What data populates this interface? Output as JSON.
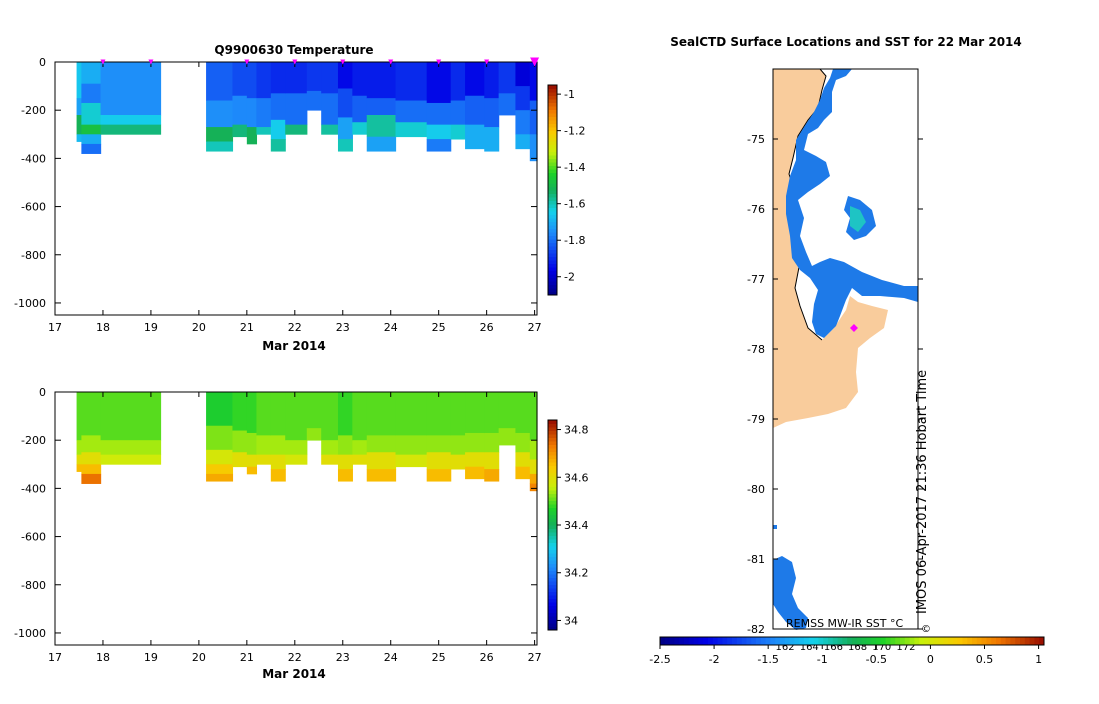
{
  "chart_data": [
    {
      "type": "heatmap",
      "title": "Q9900630  Temperature",
      "xlabel": "Mar 2014",
      "ylabel": "",
      "x_ticks": [
        "17",
        "18",
        "19",
        "20",
        "21",
        "22",
        "23",
        "24",
        "25",
        "26",
        "27"
      ],
      "y_ticks": [
        "0",
        "-200",
        "-400",
        "-600",
        "-800",
        "-1000"
      ],
      "xlim": [
        17,
        27.05
      ],
      "ylim": [
        -1050,
        0
      ],
      "profile_marker_days": [
        18,
        19,
        21,
        22,
        23,
        24,
        25,
        26,
        27
      ],
      "colorbar": {
        "ticks": [
          "-1",
          "-1.2",
          "-1.4",
          "-1.6",
          "-1.8",
          "-2"
        ],
        "range": [
          -2.1,
          -0.95
        ]
      },
      "profiles": [
        {
          "x0": 17.45,
          "x1": 17.55,
          "depth": 330,
          "layers": [
            [
              0,
              -1.66
            ],
            [
              150,
              -1.72
            ],
            [
              220,
              -1.52
            ],
            [
              300,
              -1.68
            ]
          ]
        },
        {
          "x0": 17.55,
          "x1": 17.95,
          "depth": 380,
          "layers": [
            [
              0,
              -1.7
            ],
            [
              90,
              -1.78
            ],
            [
              170,
              -1.62
            ],
            [
              260,
              -1.48
            ],
            [
              300,
              -1.7
            ],
            [
              340,
              -1.8
            ]
          ]
        },
        {
          "x0": 17.95,
          "x1": 19.2,
          "depth": 300,
          "layers": [
            [
              0,
              -1.75
            ],
            [
              220,
              -1.65
            ],
            [
              260,
              -1.55
            ]
          ]
        },
        {
          "x0": 20.15,
          "x1": 20.7,
          "depth": 370,
          "layers": [
            [
              0,
              -1.82
            ],
            [
              160,
              -1.75
            ],
            [
              270,
              -1.52
            ],
            [
              330,
              -1.6
            ]
          ]
        },
        {
          "x0": 20.7,
          "x1": 21.0,
          "depth": 310,
          "layers": [
            [
              0,
              -1.85
            ],
            [
              140,
              -1.76
            ],
            [
              260,
              -1.55
            ]
          ]
        },
        {
          "x0": 21.0,
          "x1": 21.2,
          "depth": 340,
          "layers": [
            [
              0,
              -1.85
            ],
            [
              150,
              -1.76
            ],
            [
              270,
              -1.52
            ]
          ]
        },
        {
          "x0": 21.2,
          "x1": 21.5,
          "depth": 300,
          "layers": [
            [
              0,
              -1.88
            ],
            [
              150,
              -1.78
            ],
            [
              270,
              -1.6
            ]
          ]
        },
        {
          "x0": 21.5,
          "x1": 21.8,
          "depth": 370,
          "layers": [
            [
              0,
              -1.9
            ],
            [
              130,
              -1.8
            ],
            [
              240,
              -1.65
            ],
            [
              320,
              -1.58
            ]
          ]
        },
        {
          "x0": 21.8,
          "x1": 22.25,
          "depth": 300,
          "layers": [
            [
              0,
              -1.9
            ],
            [
              130,
              -1.8
            ],
            [
              260,
              -1.55
            ]
          ]
        },
        {
          "x0": 22.25,
          "x1": 22.55,
          "depth": 200,
          "layers": [
            [
              0,
              -1.88
            ],
            [
              120,
              -1.8
            ]
          ]
        },
        {
          "x0": 22.55,
          "x1": 22.9,
          "depth": 300,
          "layers": [
            [
              0,
              -1.88
            ],
            [
              130,
              -1.8
            ],
            [
              260,
              -1.58
            ]
          ]
        },
        {
          "x0": 22.9,
          "x1": 23.2,
          "depth": 370,
          "layers": [
            [
              0,
              -1.95
            ],
            [
              110,
              -1.85
            ],
            [
              230,
              -1.72
            ],
            [
              320,
              -1.6
            ]
          ]
        },
        {
          "x0": 23.2,
          "x1": 23.5,
          "depth": 300,
          "layers": [
            [
              0,
              -1.92
            ],
            [
              140,
              -1.82
            ],
            [
              250,
              -1.62
            ]
          ]
        },
        {
          "x0": 23.5,
          "x1": 24.1,
          "depth": 370,
          "layers": [
            [
              0,
              -1.92
            ],
            [
              150,
              -1.82
            ],
            [
              220,
              -1.58
            ],
            [
              310,
              -1.72
            ]
          ]
        },
        {
          "x0": 24.1,
          "x1": 24.75,
          "depth": 310,
          "layers": [
            [
              0,
              -1.9
            ],
            [
              160,
              -1.8
            ],
            [
              250,
              -1.62
            ]
          ]
        },
        {
          "x0": 24.75,
          "x1": 25.25,
          "depth": 370,
          "layers": [
            [
              0,
              -1.95
            ],
            [
              170,
              -1.8
            ],
            [
              260,
              -1.65
            ],
            [
              320,
              -1.78
            ]
          ]
        },
        {
          "x0": 25.25,
          "x1": 25.55,
          "depth": 320,
          "layers": [
            [
              0,
              -1.9
            ],
            [
              160,
              -1.8
            ],
            [
              260,
              -1.62
            ]
          ]
        },
        {
          "x0": 25.55,
          "x1": 25.95,
          "depth": 360,
          "layers": [
            [
              0,
              -1.95
            ],
            [
              140,
              -1.82
            ],
            [
              260,
              -1.7
            ]
          ]
        },
        {
          "x0": 25.95,
          "x1": 26.25,
          "depth": 370,
          "layers": [
            [
              0,
              -1.92
            ],
            [
              150,
              -1.82
            ],
            [
              270,
              -1.7
            ]
          ]
        },
        {
          "x0": 26.25,
          "x1": 26.6,
          "depth": 220,
          "layers": [
            [
              0,
              -1.88
            ],
            [
              130,
              -1.8
            ]
          ]
        },
        {
          "x0": 26.6,
          "x1": 26.9,
          "depth": 360,
          "layers": [
            [
              0,
              -1.98
            ],
            [
              100,
              -1.88
            ],
            [
              200,
              -1.78
            ],
            [
              300,
              -1.7
            ]
          ]
        },
        {
          "x0": 26.9,
          "x1": 27.05,
          "depth": 410,
          "layers": [
            [
              0,
              -1.95
            ],
            [
              160,
              -1.82
            ],
            [
              300,
              -1.75
            ]
          ]
        }
      ]
    },
    {
      "type": "heatmap",
      "title": "",
      "xlabel": "Mar 2014",
      "ylabel": "",
      "x_ticks": [
        "17",
        "18",
        "19",
        "20",
        "21",
        "22",
        "23",
        "24",
        "25",
        "26",
        "27"
      ],
      "y_ticks": [
        "0",
        "-200",
        "-400",
        "-600",
        "-800",
        "-1000"
      ],
      "xlim": [
        17,
        27.05
      ],
      "ylim": [
        -1050,
        0
      ],
      "colorbar": {
        "ticks": [
          "34.8",
          "34.6",
          "34.4",
          "34.2",
          "34"
        ],
        "range": [
          33.96,
          34.84
        ]
      },
      "profiles": [
        {
          "x0": 17.45,
          "x1": 17.55,
          "depth": 330,
          "layers": [
            [
              0,
              34.5
            ],
            [
              200,
              34.54
            ],
            [
              260,
              34.6
            ],
            [
              300,
              34.66
            ]
          ]
        },
        {
          "x0": 17.55,
          "x1": 17.95,
          "depth": 380,
          "layers": [
            [
              0,
              34.5
            ],
            [
              180,
              34.54
            ],
            [
              250,
              34.6
            ],
            [
              300,
              34.66
            ],
            [
              340,
              34.74
            ]
          ]
        },
        {
          "x0": 17.95,
          "x1": 19.2,
          "depth": 300,
          "layers": [
            [
              0,
              34.5
            ],
            [
              200,
              34.54
            ],
            [
              260,
              34.57
            ]
          ]
        },
        {
          "x0": 20.15,
          "x1": 20.7,
          "depth": 370,
          "layers": [
            [
              0,
              34.46
            ],
            [
              140,
              34.52
            ],
            [
              240,
              34.58
            ],
            [
              300,
              34.64
            ],
            [
              340,
              34.68
            ]
          ]
        },
        {
          "x0": 20.7,
          "x1": 21.0,
          "depth": 310,
          "layers": [
            [
              0,
              34.48
            ],
            [
              160,
              34.53
            ],
            [
              250,
              34.6
            ]
          ]
        },
        {
          "x0": 21.0,
          "x1": 21.2,
          "depth": 340,
          "layers": [
            [
              0,
              34.48
            ],
            [
              170,
              34.53
            ],
            [
              260,
              34.6
            ],
            [
              310,
              34.66
            ]
          ]
        },
        {
          "x0": 21.2,
          "x1": 21.5,
          "depth": 300,
          "layers": [
            [
              0,
              34.5
            ],
            [
              180,
              34.54
            ],
            [
              260,
              34.6
            ]
          ]
        },
        {
          "x0": 21.5,
          "x1": 21.8,
          "depth": 370,
          "layers": [
            [
              0,
              34.5
            ],
            [
              180,
              34.54
            ],
            [
              260,
              34.6
            ],
            [
              320,
              34.66
            ]
          ]
        },
        {
          "x0": 21.8,
          "x1": 22.25,
          "depth": 300,
          "layers": [
            [
              0,
              34.5
            ],
            [
              200,
              34.54
            ],
            [
              260,
              34.58
            ]
          ]
        },
        {
          "x0": 22.25,
          "x1": 22.55,
          "depth": 200,
          "layers": [
            [
              0,
              34.5
            ],
            [
              150,
              34.53
            ]
          ]
        },
        {
          "x0": 22.55,
          "x1": 22.9,
          "depth": 300,
          "layers": [
            [
              0,
              34.5
            ],
            [
              200,
              34.54
            ],
            [
              260,
              34.6
            ]
          ]
        },
        {
          "x0": 22.9,
          "x1": 23.2,
          "depth": 370,
          "layers": [
            [
              0,
              34.48
            ],
            [
              180,
              34.53
            ],
            [
              260,
              34.6
            ],
            [
              320,
              34.66
            ]
          ]
        },
        {
          "x0": 23.2,
          "x1": 23.5,
          "depth": 300,
          "layers": [
            [
              0,
              34.5
            ],
            [
              200,
              34.54
            ],
            [
              260,
              34.6
            ]
          ]
        },
        {
          "x0": 23.5,
          "x1": 24.1,
          "depth": 370,
          "layers": [
            [
              0,
              34.5
            ],
            [
              180,
              34.53
            ],
            [
              250,
              34.6
            ],
            [
              320,
              34.66
            ]
          ]
        },
        {
          "x0": 24.1,
          "x1": 24.75,
          "depth": 310,
          "layers": [
            [
              0,
              34.5
            ],
            [
              180,
              34.53
            ],
            [
              260,
              34.58
            ]
          ]
        },
        {
          "x0": 24.75,
          "x1": 25.25,
          "depth": 370,
          "layers": [
            [
              0,
              34.5
            ],
            [
              180,
              34.53
            ],
            [
              250,
              34.6
            ],
            [
              320,
              34.66
            ]
          ]
        },
        {
          "x0": 25.25,
          "x1": 25.55,
          "depth": 320,
          "layers": [
            [
              0,
              34.5
            ],
            [
              180,
              34.53
            ],
            [
              260,
              34.6
            ]
          ]
        },
        {
          "x0": 25.55,
          "x1": 25.95,
          "depth": 360,
          "layers": [
            [
              0,
              34.5
            ],
            [
              170,
              34.53
            ],
            [
              250,
              34.6
            ],
            [
              310,
              34.66
            ]
          ]
        },
        {
          "x0": 25.95,
          "x1": 26.25,
          "depth": 370,
          "layers": [
            [
              0,
              34.5
            ],
            [
              170,
              34.53
            ],
            [
              250,
              34.6
            ],
            [
              320,
              34.68
            ]
          ]
        },
        {
          "x0": 26.25,
          "x1": 26.6,
          "depth": 220,
          "layers": [
            [
              0,
              34.5
            ],
            [
              150,
              34.53
            ]
          ]
        },
        {
          "x0": 26.6,
          "x1": 26.9,
          "depth": 360,
          "layers": [
            [
              0,
              34.5
            ],
            [
              170,
              34.53
            ],
            [
              250,
              34.6
            ],
            [
              310,
              34.66
            ]
          ]
        },
        {
          "x0": 26.9,
          "x1": 27.05,
          "depth": 410,
          "layers": [
            [
              0,
              34.5
            ],
            [
              200,
              34.54
            ],
            [
              280,
              34.6
            ],
            [
              340,
              34.68
            ],
            [
              380,
              34.72
            ]
          ]
        }
      ]
    },
    {
      "type": "heatmap",
      "title": "SealCTD Surface Locations and SST for 22 Mar 2014",
      "ylabel": "",
      "y_ticks": [
        "-75",
        "-76",
        "-77",
        "-78",
        "-79",
        "-80",
        "-81",
        "-82"
      ],
      "ylim": [
        -82,
        -74
      ],
      "lon_labels": [
        "162",
        "164",
        "166",
        "168",
        "170",
        "172"
      ],
      "colorbar": {
        "ticks": [
          "-2.5",
          "-2",
          "-1.5",
          "-1",
          "-0.5",
          "0",
          "0.5",
          "1"
        ],
        "range": [
          -2.5,
          1.05
        ],
        "label": "REMSS MW-IR SST °C"
      },
      "seal_location": {
        "lon": 167.7,
        "lat": -77.7
      },
      "credit": "IMOS 06-Apr-2017 21:36 Hobart Time",
      "copyright": "©"
    }
  ]
}
